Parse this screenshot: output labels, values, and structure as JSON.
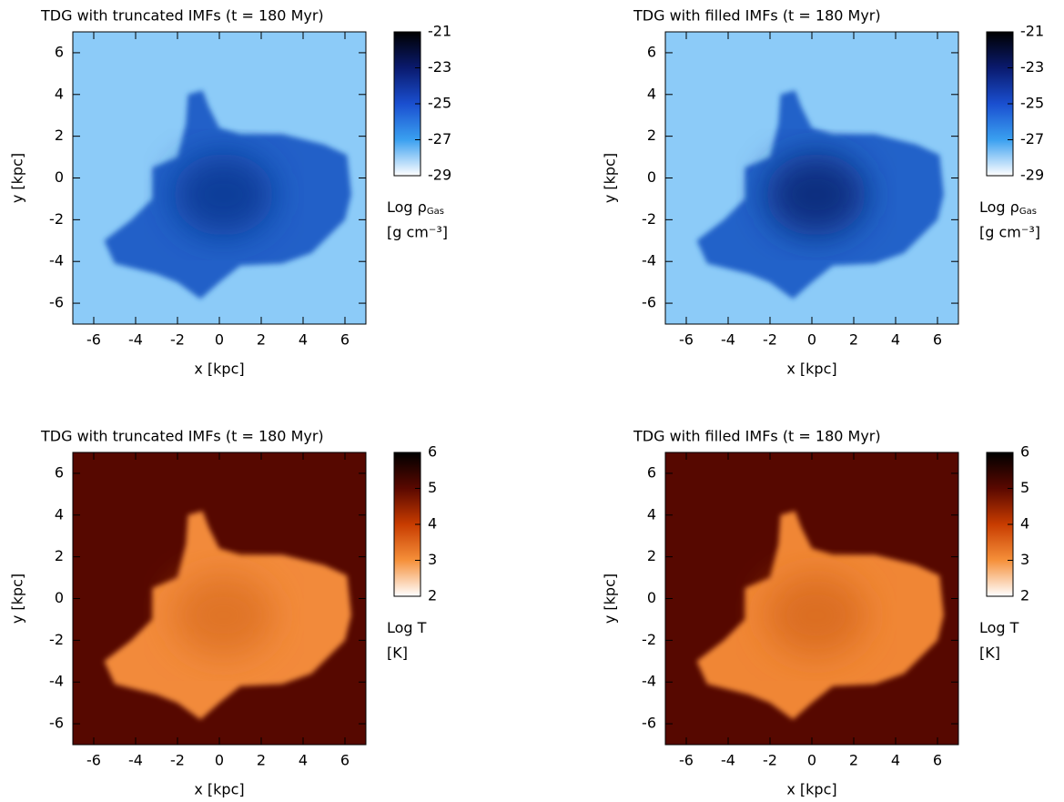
{
  "chart_data": [
    {
      "type": "image",
      "title": "TDG with truncated IMFs (t = 180 Myr)",
      "xlabel": "x [kpc]",
      "ylabel": "y [kpc]",
      "xlim": [
        -7,
        7
      ],
      "ylim": [
        -7,
        7
      ],
      "xticks": [
        -6,
        -4,
        -2,
        0,
        2,
        4,
        6
      ],
      "yticks": [
        -6,
        -4,
        -2,
        0,
        2,
        4,
        6
      ],
      "colorbar": {
        "label": "Log ρ",
        "label_sub": "Gas",
        "unit": "[g cm⁻³]",
        "lim": [
          -29,
          -21
        ],
        "ticks": [
          -29,
          -27,
          -25,
          -23,
          -21
        ],
        "colors": [
          "#ffffff",
          "#3aa0f0",
          "#1a4fd0",
          "#0a1a6e",
          "#000000"
        ]
      },
      "background": "#8ccbf8",
      "blob": "#2260c8",
      "core": "#0e3c9a"
    },
    {
      "type": "image",
      "title": "TDG with filled IMFs (t = 180 Myr)",
      "xlabel": "x [kpc]",
      "ylabel": "y [kpc]",
      "xlim": [
        -7,
        7
      ],
      "ylim": [
        -7,
        7
      ],
      "xticks": [
        -6,
        -4,
        -2,
        0,
        2,
        4,
        6
      ],
      "yticks": [
        -6,
        -4,
        -2,
        0,
        2,
        4,
        6
      ],
      "colorbar": {
        "label": "Log ρ",
        "label_sub": "Gas",
        "unit": "[g cm⁻³]",
        "lim": [
          -29,
          -21
        ],
        "ticks": [
          -29,
          -27,
          -25,
          -23,
          -21
        ],
        "colors": [
          "#ffffff",
          "#3aa0f0",
          "#1a4fd0",
          "#0a1a6e",
          "#000000"
        ]
      },
      "background": "#8ccbf8",
      "blob": "#2362c9",
      "core": "#0a2f80"
    },
    {
      "type": "image",
      "title": "TDG with truncated IMFs (t = 180 Myr)",
      "xlabel": "x [kpc]",
      "ylabel": "y [kpc]",
      "xlim": [
        -7,
        7
      ],
      "ylim": [
        -7,
        7
      ],
      "xticks": [
        -6,
        -4,
        -2,
        0,
        2,
        4,
        6
      ],
      "yticks": [
        -6,
        -4,
        -2,
        0,
        2,
        4,
        6
      ],
      "colorbar": {
        "label": "Log T",
        "unit": "[K]",
        "lim": [
          2,
          6
        ],
        "ticks": [
          2,
          3,
          4,
          5,
          6
        ],
        "colors": [
          "#ffffff",
          "#f5903a",
          "#c83c00",
          "#5a0800",
          "#000000"
        ]
      },
      "background": "#560800",
      "blob": "#f28a3a",
      "core": "#e07428"
    },
    {
      "type": "image",
      "title": "TDG with filled IMFs (t = 180 Myr)",
      "xlabel": "x [kpc]",
      "ylabel": "y [kpc]",
      "xlim": [
        -7,
        7
      ],
      "ylim": [
        -7,
        7
      ],
      "xticks": [
        -6,
        -4,
        -2,
        0,
        2,
        4,
        6
      ],
      "yticks": [
        -6,
        -4,
        -2,
        0,
        2,
        4,
        6
      ],
      "colorbar": {
        "label": "Log T",
        "unit": "[K]",
        "lim": [
          2,
          6
        ],
        "ticks": [
          2,
          3,
          4,
          5,
          6
        ],
        "colors": [
          "#ffffff",
          "#f5903a",
          "#c83c00",
          "#5a0800",
          "#000000"
        ]
      },
      "background": "#560800",
      "blob": "#f08636",
      "core": "#dc6e22"
    }
  ]
}
